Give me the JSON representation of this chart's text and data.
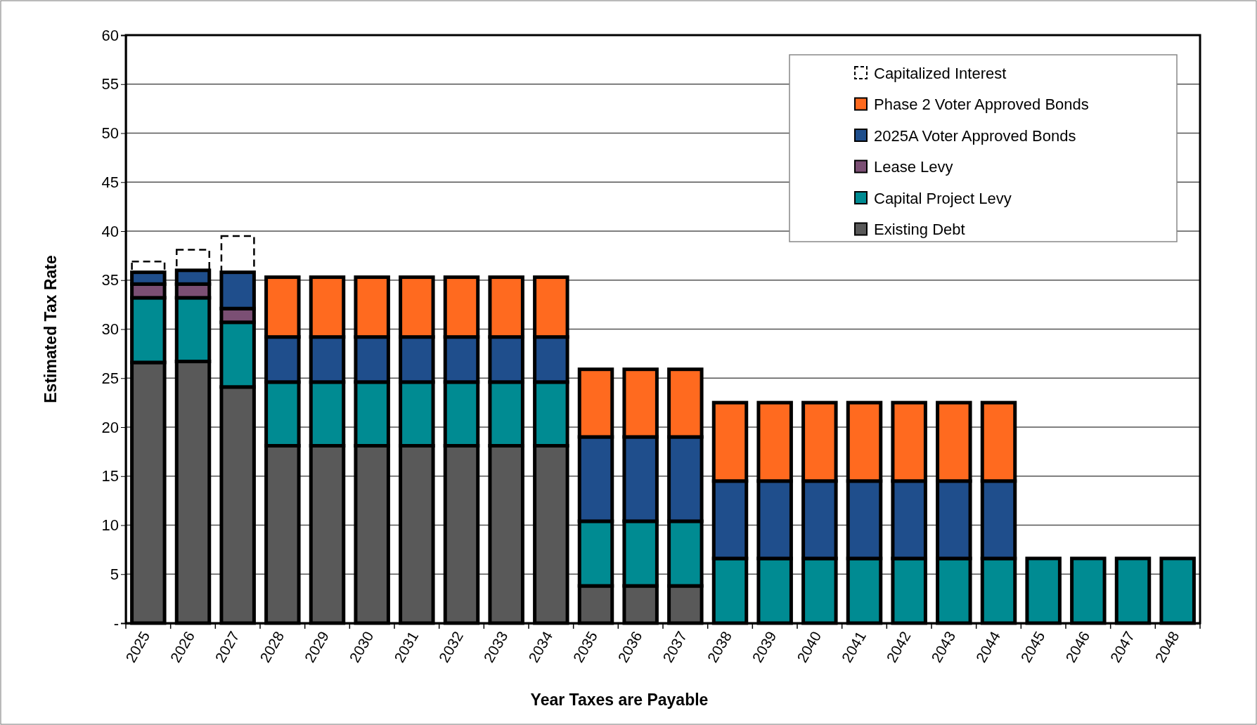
{
  "chart_data": {
    "type": "bar",
    "stacked": true,
    "xlabel": "Year Taxes are Payable",
    "ylabel": "Estimated Tax Rate",
    "categories": [
      "2025",
      "2026",
      "2027",
      "2028",
      "2029",
      "2030",
      "2031",
      "2032",
      "2033",
      "2034",
      "2035",
      "2036",
      "2037",
      "2038",
      "2039",
      "2040",
      "2041",
      "2042",
      "2043",
      "2044",
      "2045",
      "2046",
      "2047",
      "2048"
    ],
    "series": [
      {
        "name": "Existing Debt",
        "color": "#595959",
        "values": [
          26.6,
          26.7,
          24.1,
          18.1,
          18.1,
          18.1,
          18.1,
          18.1,
          18.1,
          18.1,
          3.8,
          3.8,
          3.8,
          null,
          null,
          null,
          null,
          null,
          null,
          null,
          null,
          null,
          null,
          null
        ]
      },
      {
        "name": "Capital Project Levy",
        "color": "#008b92",
        "values": [
          6.6,
          6.5,
          6.6,
          6.5,
          6.5,
          6.5,
          6.5,
          6.5,
          6.5,
          6.5,
          6.6,
          6.6,
          6.6,
          6.6,
          6.6,
          6.6,
          6.6,
          6.6,
          6.6,
          6.6,
          6.6,
          6.6,
          6.6,
          6.6
        ]
      },
      {
        "name": "Lease Levy",
        "color": "#7b4f74",
        "values": [
          1.4,
          1.4,
          1.4,
          null,
          null,
          null,
          null,
          null,
          null,
          null,
          null,
          null,
          null,
          null,
          null,
          null,
          null,
          null,
          null,
          null,
          null,
          null,
          null,
          null
        ]
      },
      {
        "name": "2025A Voter Approved Bonds",
        "color": "#1f4e8c",
        "values": [
          1.2,
          1.4,
          3.7,
          4.6,
          4.6,
          4.6,
          4.6,
          4.6,
          4.6,
          4.6,
          8.6,
          8.6,
          8.6,
          7.9,
          7.9,
          7.9,
          7.9,
          7.9,
          7.9,
          7.9,
          null,
          null,
          null,
          null
        ]
      },
      {
        "name": "Phase 2 Voter Approved Bonds",
        "color": "#ff6a1f",
        "values": [
          null,
          null,
          null,
          6.1,
          6.1,
          6.1,
          6.1,
          6.1,
          6.1,
          6.1,
          6.9,
          6.9,
          6.9,
          8.0,
          8.0,
          8.0,
          8.0,
          8.0,
          8.0,
          8.0,
          null,
          null,
          null,
          null
        ]
      },
      {
        "name": "Capitalized Interest",
        "color": "#000000",
        "line_style": "dashed",
        "values": [
          1.1,
          2.1,
          3.7,
          null,
          null,
          null,
          null,
          null,
          null,
          null,
          null,
          null,
          null,
          null,
          null,
          null,
          null,
          null,
          null,
          null,
          null,
          null,
          null,
          null
        ]
      }
    ],
    "ylim": [
      0,
      60
    ],
    "yticks": [
      {
        "value": 0,
        "label": "-"
      },
      5,
      10,
      15,
      20,
      25,
      30,
      35,
      40,
      45,
      50,
      55,
      60
    ],
    "grid": "y",
    "legend": "top right"
  }
}
